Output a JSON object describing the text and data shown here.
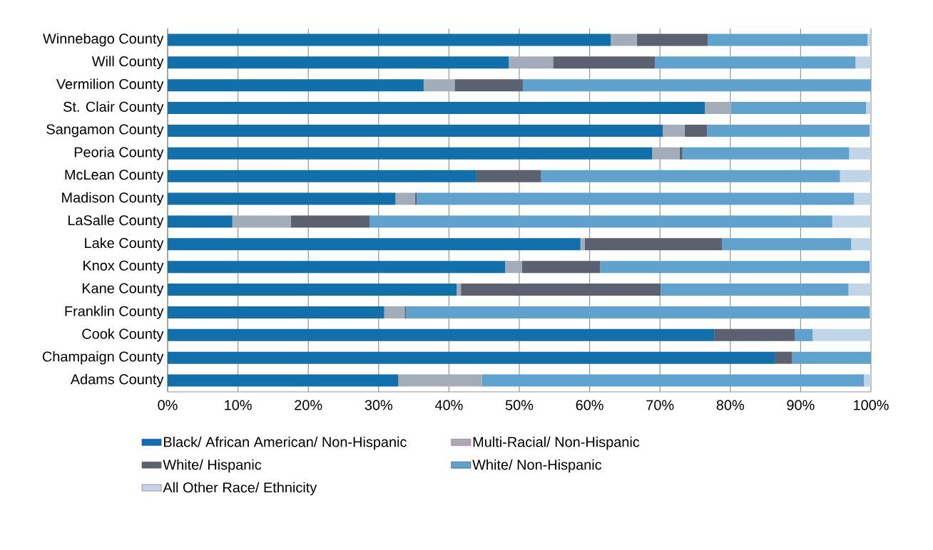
{
  "chart_data": {
    "type": "bar",
    "orientation": "horizontal",
    "stacked": true,
    "categories": [
      "Winnebago County",
      "Will County",
      "Vermilion County",
      "St. Clair County",
      "Sangamon County",
      "Peoria County",
      "McLean County",
      "Madison County",
      "LaSalle County",
      "Lake County",
      "Knox County",
      "Kane County",
      "Franklin County",
      "Cook County",
      "Champaign County",
      "Adams County"
    ],
    "series": [
      {
        "name": "Black/ African American/ Non-Hispanic",
        "color": "#1170aa",
        "values": [
          63.0,
          48.5,
          36.4,
          76.4,
          70.4,
          68.9,
          43.9,
          32.4,
          9.2,
          58.7,
          48.0,
          41.1,
          30.8,
          77.7,
          86.4,
          32.8
        ]
      },
      {
        "name": "Multi-Racial/ Non-Hispanic",
        "color": "#a3acb9",
        "values": [
          3.7,
          6.3,
          4.4,
          3.7,
          3.1,
          3.9,
          0,
          2.8,
          8.3,
          0.6,
          2.4,
          0.6,
          2.9,
          0,
          0,
          11.9
        ]
      },
      {
        "name": "White/ Hispanic",
        "color": "#5b616e",
        "values": [
          10.1,
          14.5,
          9.7,
          0,
          3.2,
          0.4,
          9.2,
          0.2,
          11.2,
          19.5,
          11.1,
          28.4,
          0.2,
          11.5,
          2.4,
          0
        ]
      },
      {
        "name": "White/ Non-Hispanic",
        "color": "#5fa2ce",
        "values": [
          22.7,
          28.5,
          49.5,
          19.2,
          23.1,
          23.7,
          42.5,
          62.2,
          65.8,
          18.4,
          38.3,
          26.7,
          65.9,
          2.5,
          11.2,
          54.3
        ]
      },
      {
        "name": "All Other Race/ Ethnicity",
        "color": "#c0d6e8",
        "values": [
          0.5,
          2.2,
          0,
          0.7,
          0.2,
          3.1,
          4.4,
          2.4,
          5.5,
          2.8,
          0.2,
          3.2,
          0.2,
          8.3,
          0,
          1.0
        ]
      }
    ],
    "xlim": [
      0,
      100
    ],
    "xticks": [
      {
        "value": 0,
        "label": "0%"
      },
      {
        "value": 10,
        "label": "10%"
      },
      {
        "value": 20,
        "label": "20%"
      },
      {
        "value": 30,
        "label": "30%"
      },
      {
        "value": 40,
        "label": "40%"
      },
      {
        "value": 50,
        "label": "50%"
      },
      {
        "value": 60,
        "label": "60%"
      },
      {
        "value": 70,
        "label": "70%"
      },
      {
        "value": 80,
        "label": "80%"
      },
      {
        "value": 90,
        "label": "90%"
      },
      {
        "value": 100,
        "label": "100%"
      }
    ],
    "grid": "x",
    "legend": "bottom"
  }
}
